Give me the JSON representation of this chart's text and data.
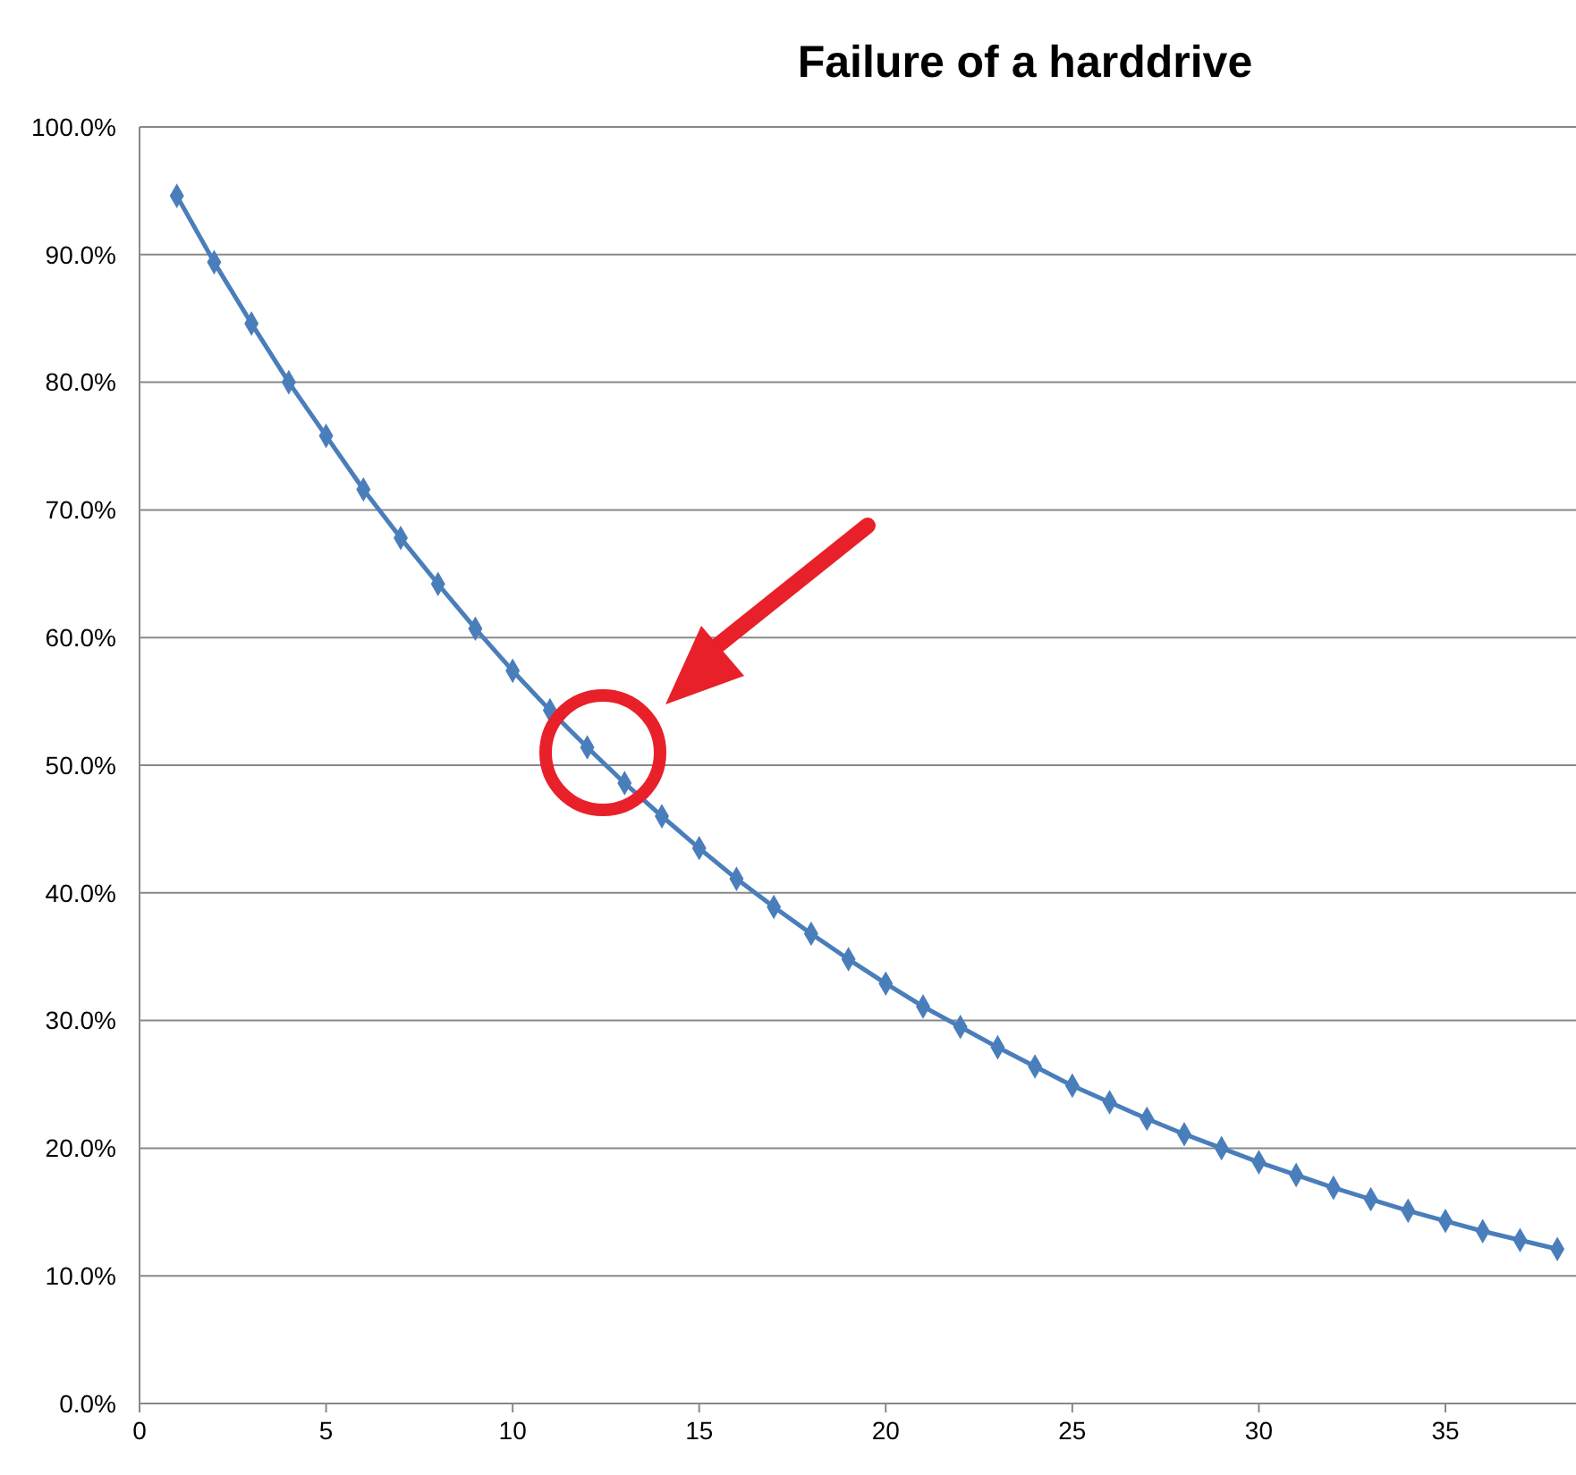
{
  "chart_data": {
    "type": "line",
    "title": "Failure of a harddrive",
    "x": [
      1,
      2,
      3,
      4,
      5,
      6,
      7,
      8,
      9,
      10,
      11,
      12,
      13,
      14,
      15,
      16,
      17,
      18,
      19,
      20,
      21,
      22,
      23,
      24,
      25,
      26,
      27,
      28,
      29,
      30,
      31,
      32,
      33,
      34,
      35,
      36,
      37,
      38
    ],
    "series": [
      {
        "color": "#4a7ebb",
        "values": [
          94.6,
          89.4,
          84.6,
          80.0,
          75.8,
          71.6,
          67.8,
          64.2,
          60.7,
          57.4,
          54.3,
          51.4,
          48.6,
          46.0,
          43.5,
          41.1,
          38.9,
          36.8,
          34.8,
          32.9,
          31.1,
          29.5,
          27.9,
          26.4,
          24.9,
          23.6,
          22.3,
          21.1,
          20.0,
          18.9,
          17.9,
          16.9,
          16.0,
          15.1,
          14.3,
          13.5,
          12.8,
          12.1
        ]
      }
    ],
    "xlim": [
      0,
      38.5
    ],
    "xticks": [
      0,
      5,
      10,
      15,
      20,
      25,
      30,
      35
    ],
    "ylim": [
      0,
      100
    ],
    "yticks": [
      {
        "value": 0,
        "label": "0.0%"
      },
      {
        "value": 10,
        "label": "10.0%"
      },
      {
        "value": 20,
        "label": "20.0%"
      },
      {
        "value": 30,
        "label": "30.0%"
      },
      {
        "value": 40,
        "label": "40.0%"
      },
      {
        "value": 50,
        "label": "50.0%"
      },
      {
        "value": 60,
        "label": "60.0%"
      },
      {
        "value": 70,
        "label": "70.0%"
      },
      {
        "value": 80,
        "label": "80.0%"
      },
      {
        "value": 90,
        "label": "90.0%"
      },
      {
        "value": 100,
        "label": "100.0%"
      }
    ],
    "grid": "y",
    "marker": "diamond",
    "line_style": "solid"
  }
}
